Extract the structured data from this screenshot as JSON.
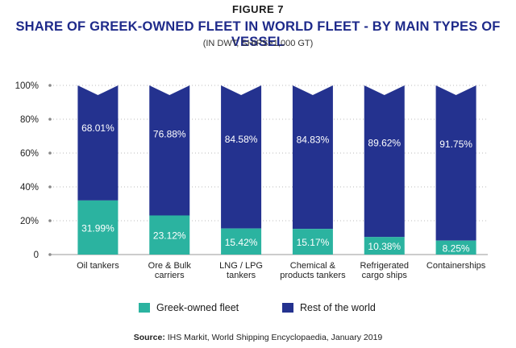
{
  "figure_label": "FIGURE 7",
  "colors": {
    "greek": "#2bb3a0",
    "rest": "#24328f",
    "axis": "#bbbbbb"
  },
  "chart_data": {
    "type": "bar",
    "stacked": true,
    "title": "SHARE OF GREEK-OWNED FLEET IN WORLD FLEET - BY MAIN TYPES OF VESSEL",
    "subtitle": "(IN DWT, SHIPS>1,000 GT)",
    "categories": [
      [
        "Oil tankers"
      ],
      [
        "Ore & Bulk",
        "carriers"
      ],
      [
        "LNG / LPG",
        "tankers"
      ],
      [
        "Chemical &",
        "products tankers"
      ],
      [
        "Refrigerated",
        "cargo ships"
      ],
      [
        "Containerships"
      ]
    ],
    "series": [
      {
        "name": "Greek-owned fleet",
        "values": [
          31.99,
          23.12,
          15.42,
          15.17,
          10.38,
          8.25
        ],
        "labels": [
          "31.99%",
          "23.12%",
          "15.42%",
          "15.17%",
          "10.38%",
          "8.25%"
        ]
      },
      {
        "name": "Rest of the world",
        "values": [
          68.01,
          76.88,
          84.58,
          84.83,
          89.62,
          91.75
        ],
        "labels": [
          "68.01%",
          "76.88%",
          "84.58%",
          "84.83%",
          "89.62%",
          "91.75%"
        ]
      }
    ],
    "yticks": [
      "0",
      "20%",
      "40%",
      "60%",
      "80%",
      "100%"
    ],
    "ylim": [
      0,
      100
    ],
    "legend_position": "bottom"
  },
  "source": {
    "label": "Source:",
    "text": " IHS Markit, World Shipping Encyclopaedia, January 2019"
  }
}
